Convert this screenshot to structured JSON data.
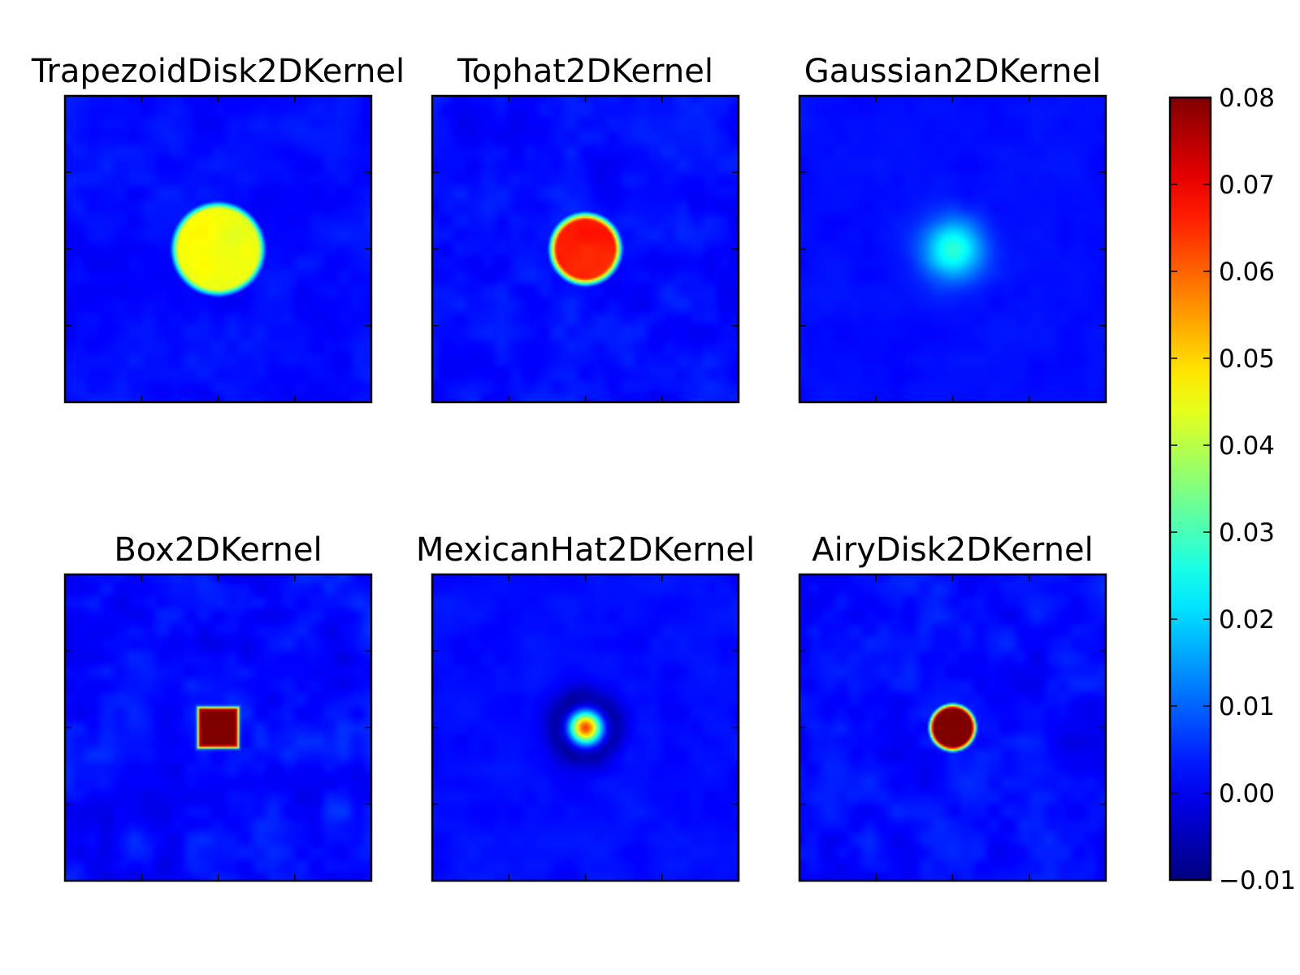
{
  "chart_data": {
    "type": "heatmap",
    "panels": [
      {
        "title": "TrapezoidDisk2DKernel",
        "shape": "disk",
        "peak": 0.043,
        "size": 0.145,
        "noise": 0.004
      },
      {
        "title": "Tophat2DKernel",
        "shape": "tophat",
        "peak": 0.064,
        "size": 0.11,
        "noise": 0.005
      },
      {
        "title": "Gaussian2DKernel",
        "shape": "gaussian",
        "peak": 0.025,
        "size": 0.07,
        "noise": 0.002
      },
      {
        "title": "Box2DKernel",
        "shape": "box",
        "peak": 0.08,
        "size": 0.065,
        "noise": 0.007
      },
      {
        "title": "MexicanHat2DKernel",
        "shape": "mexicanhat",
        "peak": 0.06,
        "size": 0.07,
        "noise": 0.003
      },
      {
        "title": "AiryDisk2DKernel",
        "shape": "airy",
        "peak": 0.08,
        "size": 0.072,
        "noise": 0.006
      }
    ],
    "colorbar": {
      "colormap": "jet",
      "vmin": -0.01,
      "vmax": 0.08,
      "ticks": [
        "−0.01",
        "0.00",
        "0.01",
        "0.02",
        "0.03",
        "0.04",
        "0.05",
        "0.06",
        "0.07",
        "0.08"
      ],
      "tick_values": [
        -0.01,
        0.0,
        0.01,
        0.02,
        0.03,
        0.04,
        0.05,
        0.06,
        0.07,
        0.08
      ]
    },
    "grid": false,
    "legend": "none"
  }
}
